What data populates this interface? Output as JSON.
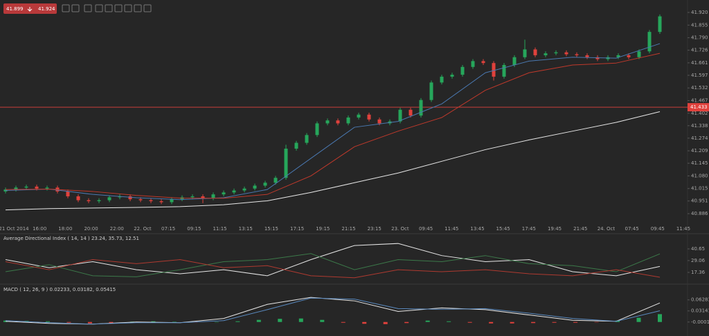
{
  "chart_data": [
    {
      "type": "candlestick",
      "bid": 41.899,
      "ask": 41.924,
      "up_color": "#26a65b",
      "down_color": "#e0413c",
      "open": [
        41.0,
        41.01,
        41.02,
        41.025,
        41.015,
        41.02,
        41.0,
        40.975,
        40.955,
        40.95,
        40.955,
        40.97,
        40.975,
        40.96,
        40.955,
        40.95,
        40.945,
        40.96,
        40.97,
        40.975,
        40.965,
        40.985,
        40.995,
        41.005,
        41.015,
        41.03,
        41.045,
        41.07,
        41.22,
        41.25,
        41.29,
        41.35,
        41.365,
        41.35,
        41.38,
        41.395,
        41.37,
        41.35,
        41.36,
        41.42,
        41.39,
        41.47,
        41.56,
        41.59,
        41.6,
        41.64,
        41.67,
        41.66,
        41.59,
        41.65,
        41.69,
        41.73,
        41.7,
        41.71,
        41.715,
        41.705,
        41.7,
        41.69,
        41.68,
        41.69,
        41.7,
        41.69,
        41.72,
        41.82
      ],
      "high": [
        41.02,
        41.03,
        41.035,
        41.035,
        41.03,
        41.03,
        41.01,
        40.985,
        40.965,
        40.965,
        40.98,
        40.985,
        40.985,
        40.97,
        40.965,
        40.96,
        40.97,
        40.98,
        40.985,
        40.985,
        40.995,
        41.005,
        41.015,
        41.025,
        41.04,
        41.055,
        41.08,
        41.24,
        41.26,
        41.3,
        41.36,
        41.375,
        41.375,
        41.39,
        41.405,
        41.405,
        41.38,
        41.37,
        41.43,
        41.43,
        41.48,
        41.57,
        41.6,
        41.61,
        41.65,
        41.68,
        41.68,
        41.67,
        41.66,
        41.7,
        41.78,
        41.74,
        41.72,
        41.725,
        41.725,
        41.715,
        41.71,
        41.7,
        41.7,
        41.71,
        41.71,
        41.73,
        41.83,
        41.91
      ],
      "low": [
        40.99,
        41.0,
        41.01,
        41.005,
        41.005,
        40.99,
        40.965,
        40.945,
        40.94,
        40.94,
        40.945,
        40.96,
        40.95,
        40.945,
        40.94,
        40.935,
        40.935,
        40.95,
        40.96,
        40.94,
        40.955,
        40.975,
        40.985,
        40.995,
        41.005,
        41.02,
        41.035,
        41.06,
        41.21,
        41.24,
        41.28,
        41.34,
        41.34,
        41.34,
        41.37,
        41.36,
        41.34,
        41.34,
        41.35,
        41.38,
        41.38,
        41.46,
        41.55,
        41.58,
        41.59,
        41.63,
        41.65,
        41.57,
        41.58,
        41.64,
        41.68,
        41.69,
        41.69,
        41.7,
        41.695,
        41.69,
        41.68,
        41.67,
        41.67,
        41.68,
        41.68,
        41.68,
        41.71,
        41.81
      ],
      "close": [
        41.01,
        41.02,
        41.025,
        41.015,
        41.02,
        41.0,
        40.975,
        40.955,
        40.95,
        40.955,
        40.97,
        40.975,
        40.96,
        40.955,
        40.95,
        40.945,
        40.96,
        40.97,
        40.975,
        40.965,
        40.985,
        40.995,
        41.005,
        41.015,
        41.03,
        41.045,
        41.07,
        41.22,
        41.25,
        41.29,
        41.35,
        41.365,
        41.35,
        41.38,
        41.395,
        41.37,
        41.35,
        41.36,
        41.42,
        41.39,
        41.47,
        41.56,
        41.59,
        41.6,
        41.64,
        41.67,
        41.66,
        41.59,
        41.65,
        41.69,
        41.73,
        41.7,
        41.71,
        41.715,
        41.705,
        41.7,
        41.69,
        41.68,
        41.69,
        41.7,
        41.69,
        41.72,
        41.82,
        41.9
      ],
      "series": [
        {
          "color": "#4a78b0",
          "values": [
            41.005,
            41.012,
            40.985,
            40.968,
            40.958,
            40.968,
            41.01,
            41.17,
            41.33,
            41.36,
            41.45,
            41.61,
            41.67,
            41.69,
            41.685,
            41.76
          ]
        },
        {
          "color": "#c0392b",
          "values": [
            41.01,
            41.012,
            41.0,
            40.98,
            40.966,
            40.965,
            40.985,
            41.08,
            41.23,
            41.31,
            41.38,
            41.52,
            41.61,
            41.65,
            41.66,
            41.71
          ]
        },
        {
          "color": "#e8e8e8",
          "values": [
            40.905,
            40.912,
            40.915,
            40.918,
            40.922,
            40.932,
            40.952,
            40.995,
            41.045,
            41.095,
            41.155,
            41.215,
            41.265,
            41.31,
            41.355,
            41.41
          ]
        }
      ],
      "current_price": 41.433,
      "current_price_color": "#e0413c",
      "ylim": [
        40.847,
        41.984
      ],
      "yticks": [
        {
          "value": 41.92,
          "label": "41.920"
        },
        41.855,
        {
          "value": 41.79,
          "label": "41.790"
        },
        41.726,
        41.661,
        41.597,
        41.532,
        41.467,
        41.402,
        41.338,
        41.274,
        41.209,
        41.145,
        {
          "value": 41.08,
          "label": "41.080"
        },
        41.015,
        40.951,
        40.886
      ],
      "x_labels": [
        "21 Oct 2014",
        "16:00",
        "18:00",
        "20:00",
        "22:00",
        "22. Oct",
        "07:15",
        "09:15",
        "11:15",
        "13:15",
        "15:15",
        "17:15",
        "19:15",
        "21:15",
        "23:15",
        "23. Oct",
        "09:45",
        "11:45",
        "13:45",
        "15:45",
        "17:45",
        "19:45",
        "21:45",
        "24. Oct",
        "07:45",
        "09:45",
        "11:45"
      ]
    },
    {
      "type": "line",
      "title": "Average Directional Index ( 14, 14 ) 23.24, 35.73, 12.51",
      "series": [
        {
          "color": "#e8e8e8",
          "values": [
            30,
            22,
            28,
            20,
            16,
            20,
            14,
            30,
            44,
            46,
            34,
            28,
            30,
            18,
            14,
            23.24
          ]
        },
        {
          "color": "#3c7a4a",
          "values": [
            18,
            25,
            14,
            13,
            20,
            28,
            30,
            36,
            20,
            30,
            28,
            34,
            26,
            24,
            18,
            35.73
          ]
        },
        {
          "color": "#b03a30",
          "values": [
            28,
            20,
            30,
            26,
            30,
            22,
            24,
            14,
            12,
            20,
            18,
            20,
            16,
            14,
            20,
            12.51
          ]
        }
      ],
      "ylim": [
        9.8,
        47.5
      ],
      "yticks": [
        40.65,
        29.06,
        17.36
      ]
    },
    {
      "type": "macd",
      "title": "MACD ( 12, 26, 9 ) 0.02233, 0.03182, 0.05415",
      "series": [
        {
          "color": "#e8e8e8",
          "values": [
            0.002,
            -0.004,
            -0.006,
            0.0,
            -0.002,
            0.01,
            0.05,
            0.07,
            0.06,
            0.03,
            0.04,
            0.035,
            0.02,
            0.005,
            0.002,
            0.05415
          ]
        },
        {
          "color": "#5a8ac0",
          "values": [
            0.004,
            -0.002,
            -0.006,
            -0.002,
            -0.002,
            0.004,
            0.035,
            0.068,
            0.065,
            0.038,
            0.036,
            0.038,
            0.025,
            0.01,
            0.002,
            0.03182
          ]
        }
      ],
      "histogram": {
        "up_color": "#26a65b",
        "down_color": "#e0413c",
        "values": [
          0.004,
          0.003,
          0.002,
          -0.002,
          -0.004,
          -0.003,
          0.001,
          0.002,
          0.001,
          -0.001,
          0.0,
          0.002,
          0.006,
          0.009,
          0.01,
          0.006,
          -0.002,
          -0.005,
          -0.006,
          -0.003,
          0.004,
          0.002,
          -0.002,
          -0.004,
          -0.004,
          -0.003,
          -0.002,
          -0.002,
          -0.001,
          0.004,
          0.012,
          0.02233
        ]
      },
      "ylim": [
        -0.028,
        0.08
      ],
      "yticks": [
        0.06283,
        0.03141,
        {
          "value": -0.0001,
          "label": "-0.00010"
        }
      ]
    }
  ]
}
